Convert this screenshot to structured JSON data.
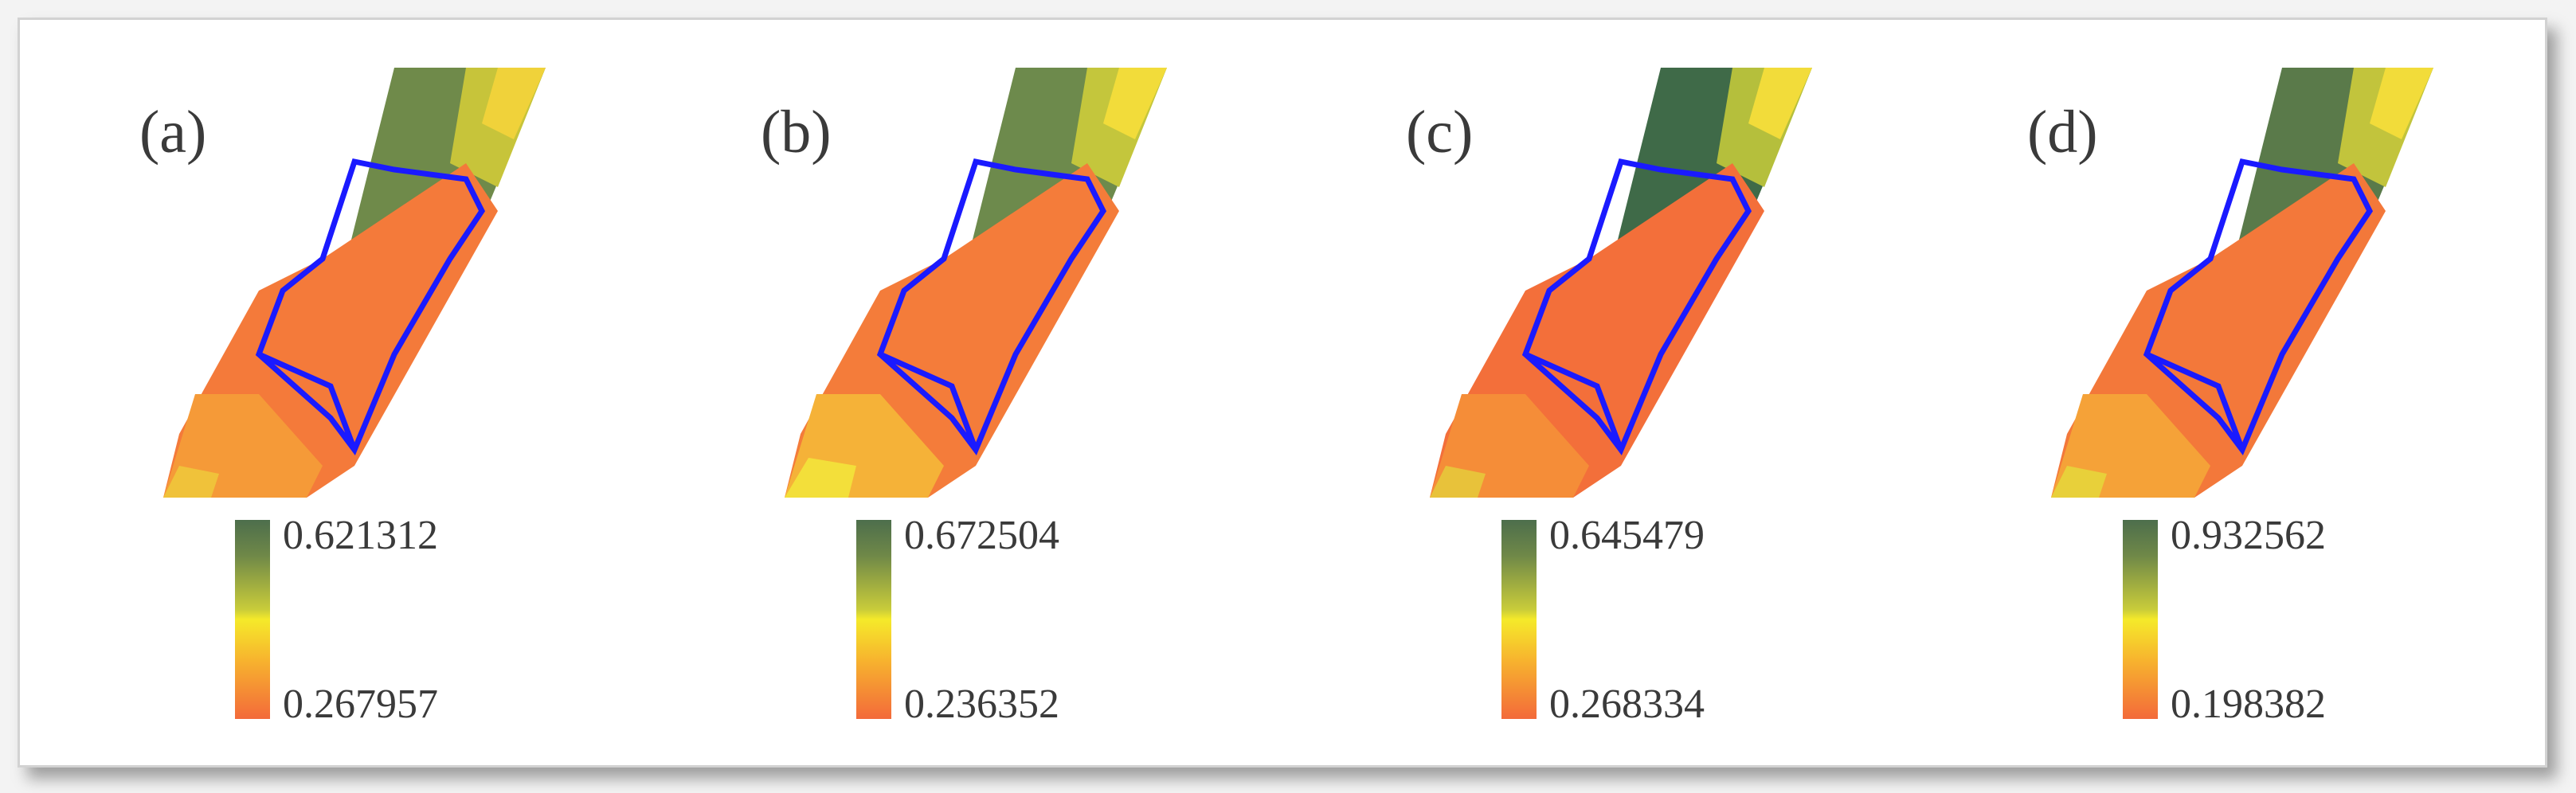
{
  "panels": [
    {
      "label": "(a)",
      "legend_max": "0.621312",
      "legend_min": "0.267957"
    },
    {
      "label": "(b)",
      "legend_max": "0.672504",
      "legend_min": "0.236352"
    },
    {
      "label": "(c)",
      "legend_max": "0.645479",
      "legend_min": "0.268334"
    },
    {
      "label": "(d)",
      "legend_max": "0.932562",
      "legend_min": "0.198382"
    }
  ],
  "colors": {
    "high": "#4d6e4c",
    "mid": "#f5ea2a",
    "low": "#f36a3a",
    "boundary": "#1a1aff"
  }
}
